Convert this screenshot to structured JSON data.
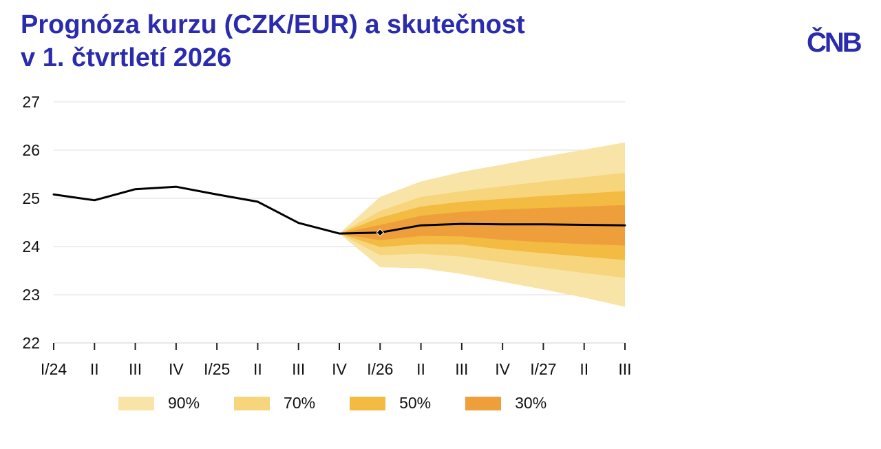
{
  "title": {
    "line1": "Prognóza kurzu (CZK/EUR) a skutečnost",
    "line2": "v 1. čtvrtletí 2026"
  },
  "logo": {
    "text": "ČNB"
  },
  "chart_data": {
    "type": "line",
    "x": [
      "I/24",
      "II",
      "III",
      "IV",
      "I/25",
      "II",
      "III",
      "IV",
      "I/26",
      "II",
      "III",
      "IV",
      "I/27",
      "II",
      "III"
    ],
    "ylim": [
      22,
      27
    ],
    "yticks": [
      22,
      23,
      24,
      25,
      26,
      27
    ],
    "grid": true,
    "series": [
      {
        "name": "Kurz CZK/EUR",
        "color": "#000000",
        "values": [
          25.08,
          24.96,
          25.19,
          25.24,
          25.08,
          24.93,
          24.49,
          24.27,
          24.29,
          24.44,
          24.47,
          24.46,
          24.46,
          24.45,
          24.44
        ]
      }
    ],
    "actual_marker": {
      "label": "I/26",
      "value": 24.29
    },
    "fan": {
      "start_index": 7,
      "bands": [
        {
          "label": "90%",
          "color": "#f9e4a7",
          "upper": [
            24.27,
            25.03,
            25.35,
            25.55,
            25.7,
            25.86,
            26.01,
            26.16
          ],
          "lower": [
            24.27,
            23.57,
            23.55,
            23.43,
            23.27,
            23.11,
            22.94,
            22.75
          ]
        },
        {
          "label": "70%",
          "color": "#f7d57c",
          "upper": [
            24.27,
            24.74,
            25.03,
            25.15,
            25.25,
            25.35,
            25.44,
            25.53
          ],
          "lower": [
            24.27,
            23.82,
            23.85,
            23.79,
            23.67,
            23.56,
            23.45,
            23.35
          ]
        },
        {
          "label": "50%",
          "color": "#f4bb43",
          "upper": [
            24.27,
            24.6,
            24.83,
            24.93,
            24.99,
            25.05,
            25.1,
            25.15
          ],
          "lower": [
            24.27,
            23.99,
            24.05,
            24.04,
            23.94,
            23.86,
            23.79,
            23.72
          ]
        },
        {
          "label": "30%",
          "color": "#ee9f3c",
          "upper": [
            24.27,
            24.45,
            24.64,
            24.72,
            24.77,
            24.8,
            24.83,
            24.86
          ],
          "lower": [
            24.27,
            24.13,
            24.22,
            24.21,
            24.14,
            24.09,
            24.05,
            24.02
          ]
        }
      ]
    },
    "legend": [
      {
        "label": "90%",
        "color": "#f9e4a7"
      },
      {
        "label": "70%",
        "color": "#f7d57c"
      },
      {
        "label": "50%",
        "color": "#f4bb43"
      },
      {
        "label": "30%",
        "color": "#ee9f3c"
      }
    ]
  }
}
